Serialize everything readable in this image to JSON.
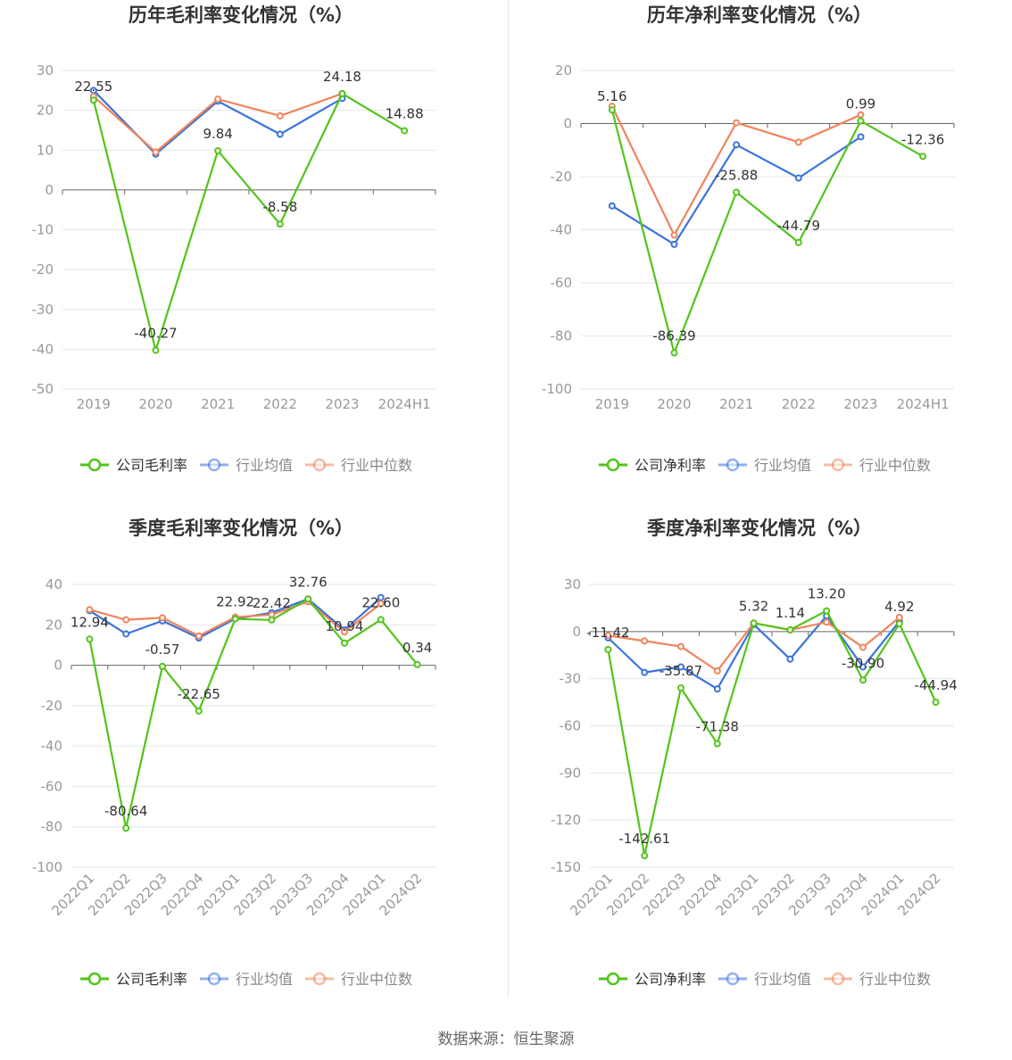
{
  "chart_data": [
    {
      "type": "line",
      "title": "历年毛利率变化情况（%）",
      "categories": [
        "2019",
        "2020",
        "2021",
        "2022",
        "2023",
        "2024H1"
      ],
      "ylim": [
        -50,
        30
      ],
      "yticks": [
        30,
        20,
        10,
        0,
        -10,
        -20,
        -30,
        -40,
        -50
      ],
      "series": [
        {
          "name": "公司毛利率",
          "color": "#52c41a",
          "values": [
            22.55,
            -40.27,
            9.84,
            -8.58,
            24.18,
            14.88
          ],
          "labels": [
            "22.55",
            "-40.27",
            "9.84",
            "-8.58",
            "24.18",
            "14.88"
          ]
        },
        {
          "name": "行业均值",
          "color": "#3b73db",
          "values": [
            25.0,
            9.0,
            22.3,
            14.0,
            23.0,
            null
          ]
        },
        {
          "name": "行业中位数",
          "color": "#f0845a",
          "values": [
            23.5,
            9.5,
            22.8,
            18.6,
            24.2,
            null
          ]
        }
      ],
      "legend_position": "bottom"
    },
    {
      "type": "line",
      "title": "历年净利率变化情况（%）",
      "categories": [
        "2019",
        "2020",
        "2021",
        "2022",
        "2023",
        "2024H1"
      ],
      "ylim": [
        -100,
        20
      ],
      "yticks": [
        20,
        0,
        -20,
        -40,
        -60,
        -80,
        -100
      ],
      "series": [
        {
          "name": "公司净利率",
          "color": "#52c41a",
          "values": [
            5.16,
            -86.39,
            -25.88,
            -44.79,
            0.99,
            -12.36
          ],
          "labels": [
            "5.16",
            "-86.39",
            "-25.88",
            "-44.79",
            "0.99",
            "-12.36"
          ]
        },
        {
          "name": "行业均值",
          "color": "#3b73db",
          "values": [
            -31.0,
            -45.5,
            -8.0,
            -20.5,
            -5.0,
            null
          ]
        },
        {
          "name": "行业中位数",
          "color": "#f0845a",
          "values": [
            6.5,
            -42.0,
            0.3,
            -7.0,
            3.3,
            null
          ]
        }
      ],
      "legend_position": "bottom"
    },
    {
      "type": "line",
      "title": "季度毛利率变化情况（%）",
      "categories": [
        "2022Q1",
        "2022Q2",
        "2022Q3",
        "2022Q4",
        "2023Q1",
        "2023Q2",
        "2023Q3",
        "2023Q4",
        "2024Q1",
        "2024Q2"
      ],
      "ylim": [
        -100,
        40
      ],
      "yticks": [
        40,
        20,
        0,
        -20,
        -40,
        -60,
        -80,
        -100
      ],
      "series": [
        {
          "name": "公司毛利率",
          "color": "#52c41a",
          "values": [
            12.94,
            -80.64,
            -0.57,
            -22.65,
            22.92,
            22.42,
            32.76,
            10.94,
            22.6,
            0.34
          ],
          "labels": [
            "12.94",
            "-80.64",
            "-0.57",
            "-22.65",
            "22.92",
            "22.42",
            "32.76",
            "10.94",
            "22.60",
            "0.34"
          ]
        },
        {
          "name": "行业均值",
          "color": "#3b73db",
          "values": [
            27.0,
            15.5,
            22.0,
            13.5,
            23.0,
            26.0,
            32.8,
            17.5,
            33.5,
            null
          ]
        },
        {
          "name": "行业中位数",
          "color": "#f0845a",
          "values": [
            27.5,
            22.5,
            23.5,
            14.5,
            23.8,
            25.0,
            31.5,
            16.5,
            30.5,
            null
          ]
        }
      ],
      "legend_position": "bottom"
    },
    {
      "type": "line",
      "title": "季度净利率变化情况（%）",
      "categories": [
        "2022Q1",
        "2022Q2",
        "2022Q3",
        "2022Q4",
        "2023Q1",
        "2023Q2",
        "2023Q3",
        "2023Q4",
        "2024Q1",
        "2024Q2"
      ],
      "ylim": [
        -150,
        30
      ],
      "yticks": [
        30,
        0,
        -30,
        -60,
        -90,
        -120,
        -150
      ],
      "series": [
        {
          "name": "公司净利率",
          "color": "#52c41a",
          "values": [
            -11.42,
            -142.61,
            -35.87,
            -71.38,
            5.32,
            1.14,
            13.2,
            -30.9,
            4.92,
            -44.94
          ],
          "labels": [
            "-11.42",
            "-142.61",
            "-35.87",
            "-71.38",
            "5.32",
            "1.14",
            "13.20",
            "-30.90",
            "4.92",
            "-44.94"
          ]
        },
        {
          "name": "行业均值",
          "color": "#3b73db",
          "values": [
            -4.0,
            -26.0,
            -22.5,
            -36.5,
            4.5,
            -17.5,
            10.0,
            -22.5,
            6.5,
            null
          ]
        },
        {
          "name": "行业中位数",
          "color": "#f0845a",
          "values": [
            -2.5,
            -6.0,
            -9.5,
            -25.0,
            5.5,
            1.0,
            6.0,
            -10.0,
            9.0,
            null
          ]
        }
      ],
      "legend_position": "bottom"
    }
  ],
  "source": "数据来源：恒生聚源"
}
